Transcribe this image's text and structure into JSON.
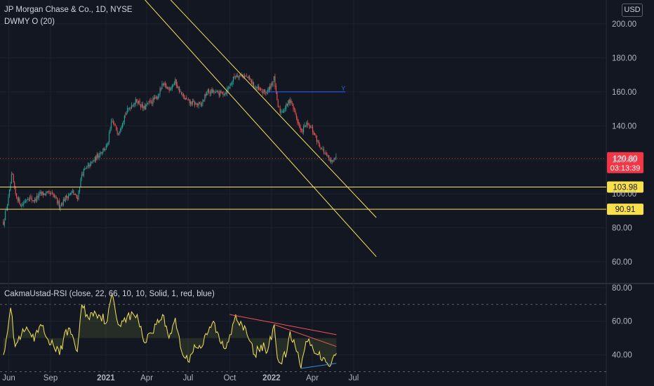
{
  "header": {
    "title": "JP Morgan Chase & Co., 1D, NYSE",
    "indicator": "DWMY O (20)",
    "currency": "USD"
  },
  "rsi_pane": {
    "label": "CakmaUstad-RSI (close, 22, 66, 10, 10, Solid, 1, red, blue)"
  },
  "colors": {
    "background": "#131722",
    "bull": "#26a69a",
    "bear": "#ef5350",
    "trendline": "#f5e35b",
    "current_price": "#f23645",
    "rsi_line": "#f5e35b",
    "hline_blue": "#2962ff"
  },
  "chart_data": [
    {
      "type": "candlestick",
      "title": "JP Morgan Chase & Co., 1D, NYSE",
      "x_tick_labels": [
        "Jun",
        "Sep",
        "2021",
        "Apr",
        "Jul",
        "Oct",
        "2022",
        "Apr",
        "Jul"
      ],
      "y_ticks": [
        200.0,
        180.0,
        160.0,
        140.0,
        120.0,
        100.0,
        80.0,
        60.0
      ],
      "ylim": [
        48,
        212
      ],
      "series": [
        {
          "close_path": [
            {
              "x": "2020-05-20",
              "y": 83
            },
            {
              "x": "2020-06-01",
              "y": 98
            },
            {
              "x": "2020-06-08",
              "y": 112
            },
            {
              "x": "2020-06-15",
              "y": 100
            },
            {
              "x": "2020-06-29",
              "y": 93
            },
            {
              "x": "2020-07-13",
              "y": 98
            },
            {
              "x": "2020-07-27",
              "y": 96
            },
            {
              "x": "2020-08-10",
              "y": 100
            },
            {
              "x": "2020-08-24",
              "y": 100
            },
            {
              "x": "2020-09-07",
              "y": 99
            },
            {
              "x": "2020-09-21",
              "y": 93
            },
            {
              "x": "2020-10-05",
              "y": 98
            },
            {
              "x": "2020-10-19",
              "y": 101
            },
            {
              "x": "2020-10-30",
              "y": 97
            },
            {
              "x": "2020-11-09",
              "y": 112
            },
            {
              "x": "2020-11-23",
              "y": 116
            },
            {
              "x": "2020-12-07",
              "y": 120
            },
            {
              "x": "2020-12-21",
              "y": 125
            },
            {
              "x": "2021-01-04",
              "y": 128
            },
            {
              "x": "2021-01-14",
              "y": 143
            },
            {
              "x": "2021-01-28",
              "y": 136
            },
            {
              "x": "2021-02-11",
              "y": 146
            },
            {
              "x": "2021-02-25",
              "y": 152
            },
            {
              "x": "2021-03-11",
              "y": 155
            },
            {
              "x": "2021-03-25",
              "y": 150
            },
            {
              "x": "2021-04-08",
              "y": 154
            },
            {
              "x": "2021-04-22",
              "y": 156
            },
            {
              "x": "2021-05-06",
              "y": 164
            },
            {
              "x": "2021-05-20",
              "y": 162
            },
            {
              "x": "2021-06-03",
              "y": 166
            },
            {
              "x": "2021-06-17",
              "y": 158
            },
            {
              "x": "2021-07-01",
              "y": 154
            },
            {
              "x": "2021-07-15",
              "y": 153
            },
            {
              "x": "2021-07-29",
              "y": 152
            },
            {
              "x": "2021-08-12",
              "y": 160
            },
            {
              "x": "2021-08-26",
              "y": 160
            },
            {
              "x": "2021-09-09",
              "y": 159
            },
            {
              "x": "2021-09-23",
              "y": 160
            },
            {
              "x": "2021-10-01",
              "y": 164
            },
            {
              "x": "2021-10-14",
              "y": 170
            },
            {
              "x": "2021-10-28",
              "y": 170
            },
            {
              "x": "2021-11-11",
              "y": 168
            },
            {
              "x": "2021-11-25",
              "y": 163
            },
            {
              "x": "2021-12-09",
              "y": 160
            },
            {
              "x": "2021-12-23",
              "y": 160
            },
            {
              "x": "2022-01-07",
              "y": 168
            },
            {
              "x": "2022-01-14",
              "y": 152
            },
            {
              "x": "2022-01-21",
              "y": 148
            },
            {
              "x": "2022-02-04",
              "y": 152
            },
            {
              "x": "2022-02-11",
              "y": 156
            },
            {
              "x": "2022-02-25",
              "y": 145
            },
            {
              "x": "2022-03-07",
              "y": 136
            },
            {
              "x": "2022-03-18",
              "y": 141
            },
            {
              "x": "2022-03-31",
              "y": 138
            },
            {
              "x": "2022-04-14",
              "y": 130
            },
            {
              "x": "2022-04-28",
              "y": 124
            },
            {
              "x": "2022-05-12",
              "y": 118
            },
            {
              "x": "2022-05-19",
              "y": 122
            },
            {
              "x": "2022-05-24",
              "y": 120.8
            }
          ]
        }
      ],
      "horizontal_lines": [
        {
          "value": 103.98,
          "label": "103.98"
        },
        {
          "value": 90.91,
          "label": "90.91"
        },
        {
          "value": 160.0,
          "from": "2021-12-23",
          "to": "2022-06-13",
          "annotation": "Y"
        }
      ],
      "trendlines": [
        {
          "from": {
            "x": "2021-03-15",
            "y": 218
          },
          "to": {
            "x": "2022-08-20",
            "y": 63
          }
        },
        {
          "from": {
            "x": "2021-05-10",
            "y": 218
          },
          "to": {
            "x": "2022-08-20",
            "y": 86
          }
        }
      ],
      "current_price": {
        "value": 120.8,
        "label": "120.80",
        "countdown": "03:13:39"
      }
    },
    {
      "type": "line",
      "title": "CakmaUstad-RSI (close, 22, 66, 10, 10, Solid, 1, red, blue)",
      "y_ticks": [
        80.0,
        60.0,
        40.0
      ],
      "ylim": [
        24,
        82
      ],
      "bands": [
        70,
        30
      ],
      "series": [
        {
          "name": "RSI",
          "values": [
            {
              "x": "2020-05-20",
              "y": 40
            },
            {
              "x": "2020-06-05",
              "y": 68
            },
            {
              "x": "2020-06-15",
              "y": 45
            },
            {
              "x": "2020-06-29",
              "y": 52
            },
            {
              "x": "2020-07-13",
              "y": 55
            },
            {
              "x": "2020-07-27",
              "y": 48
            },
            {
              "x": "2020-08-10",
              "y": 58
            },
            {
              "x": "2020-08-24",
              "y": 50
            },
            {
              "x": "2020-09-07",
              "y": 46
            },
            {
              "x": "2020-09-21",
              "y": 40
            },
            {
              "x": "2020-10-05",
              "y": 55
            },
            {
              "x": "2020-10-19",
              "y": 52
            },
            {
              "x": "2020-10-30",
              "y": 42
            },
            {
              "x": "2020-11-09",
              "y": 70
            },
            {
              "x": "2020-11-23",
              "y": 62
            },
            {
              "x": "2020-12-07",
              "y": 66
            },
            {
              "x": "2021-01-04",
              "y": 60
            },
            {
              "x": "2021-01-14",
              "y": 76
            },
            {
              "x": "2021-01-28",
              "y": 58
            },
            {
              "x": "2021-02-11",
              "y": 62
            },
            {
              "x": "2021-03-11",
              "y": 64
            },
            {
              "x": "2021-03-25",
              "y": 48
            },
            {
              "x": "2021-04-22",
              "y": 58
            },
            {
              "x": "2021-05-06",
              "y": 64
            },
            {
              "x": "2021-05-20",
              "y": 50
            },
            {
              "x": "2021-06-03",
              "y": 62
            },
            {
              "x": "2021-06-17",
              "y": 42
            },
            {
              "x": "2021-07-01",
              "y": 36
            },
            {
              "x": "2021-07-15",
              "y": 46
            },
            {
              "x": "2021-07-29",
              "y": 44
            },
            {
              "x": "2021-08-12",
              "y": 52
            },
            {
              "x": "2021-08-26",
              "y": 60
            },
            {
              "x": "2021-09-09",
              "y": 48
            },
            {
              "x": "2021-09-23",
              "y": 44
            },
            {
              "x": "2021-10-01",
              "y": 52
            },
            {
              "x": "2021-10-14",
              "y": 64
            },
            {
              "x": "2021-10-28",
              "y": 58
            },
            {
              "x": "2021-11-11",
              "y": 50
            },
            {
              "x": "2021-11-25",
              "y": 40
            },
            {
              "x": "2021-12-09",
              "y": 46
            },
            {
              "x": "2021-12-23",
              "y": 42
            },
            {
              "x": "2022-01-07",
              "y": 58
            },
            {
              "x": "2022-01-14",
              "y": 38
            },
            {
              "x": "2022-01-21",
              "y": 35
            },
            {
              "x": "2022-02-04",
              "y": 42
            },
            {
              "x": "2022-02-11",
              "y": 54
            },
            {
              "x": "2022-02-25",
              "y": 42
            },
            {
              "x": "2022-03-07",
              "y": 32
            },
            {
              "x": "2022-03-18",
              "y": 48
            },
            {
              "x": "2022-03-31",
              "y": 46
            },
            {
              "x": "2022-04-14",
              "y": 40
            },
            {
              "x": "2022-04-28",
              "y": 38
            },
            {
              "x": "2022-05-12",
              "y": 34
            },
            {
              "x": "2022-05-19",
              "y": 40
            },
            {
              "x": "2022-05-24",
              "y": 41
            }
          ]
        }
      ],
      "divergence_lines": [
        {
          "color": "red",
          "from": {
            "x": "2021-10-01",
            "y": 64
          },
          "to": {
            "x": "2022-05-24",
            "y": 52
          }
        },
        {
          "color": "red",
          "from": {
            "x": "2022-01-07",
            "y": 58
          },
          "to": {
            "x": "2022-05-24",
            "y": 45
          }
        },
        {
          "color": "blue",
          "from": {
            "x": "2022-03-07",
            "y": 32
          },
          "to": {
            "x": "2022-05-24",
            "y": 35
          }
        }
      ]
    }
  ]
}
